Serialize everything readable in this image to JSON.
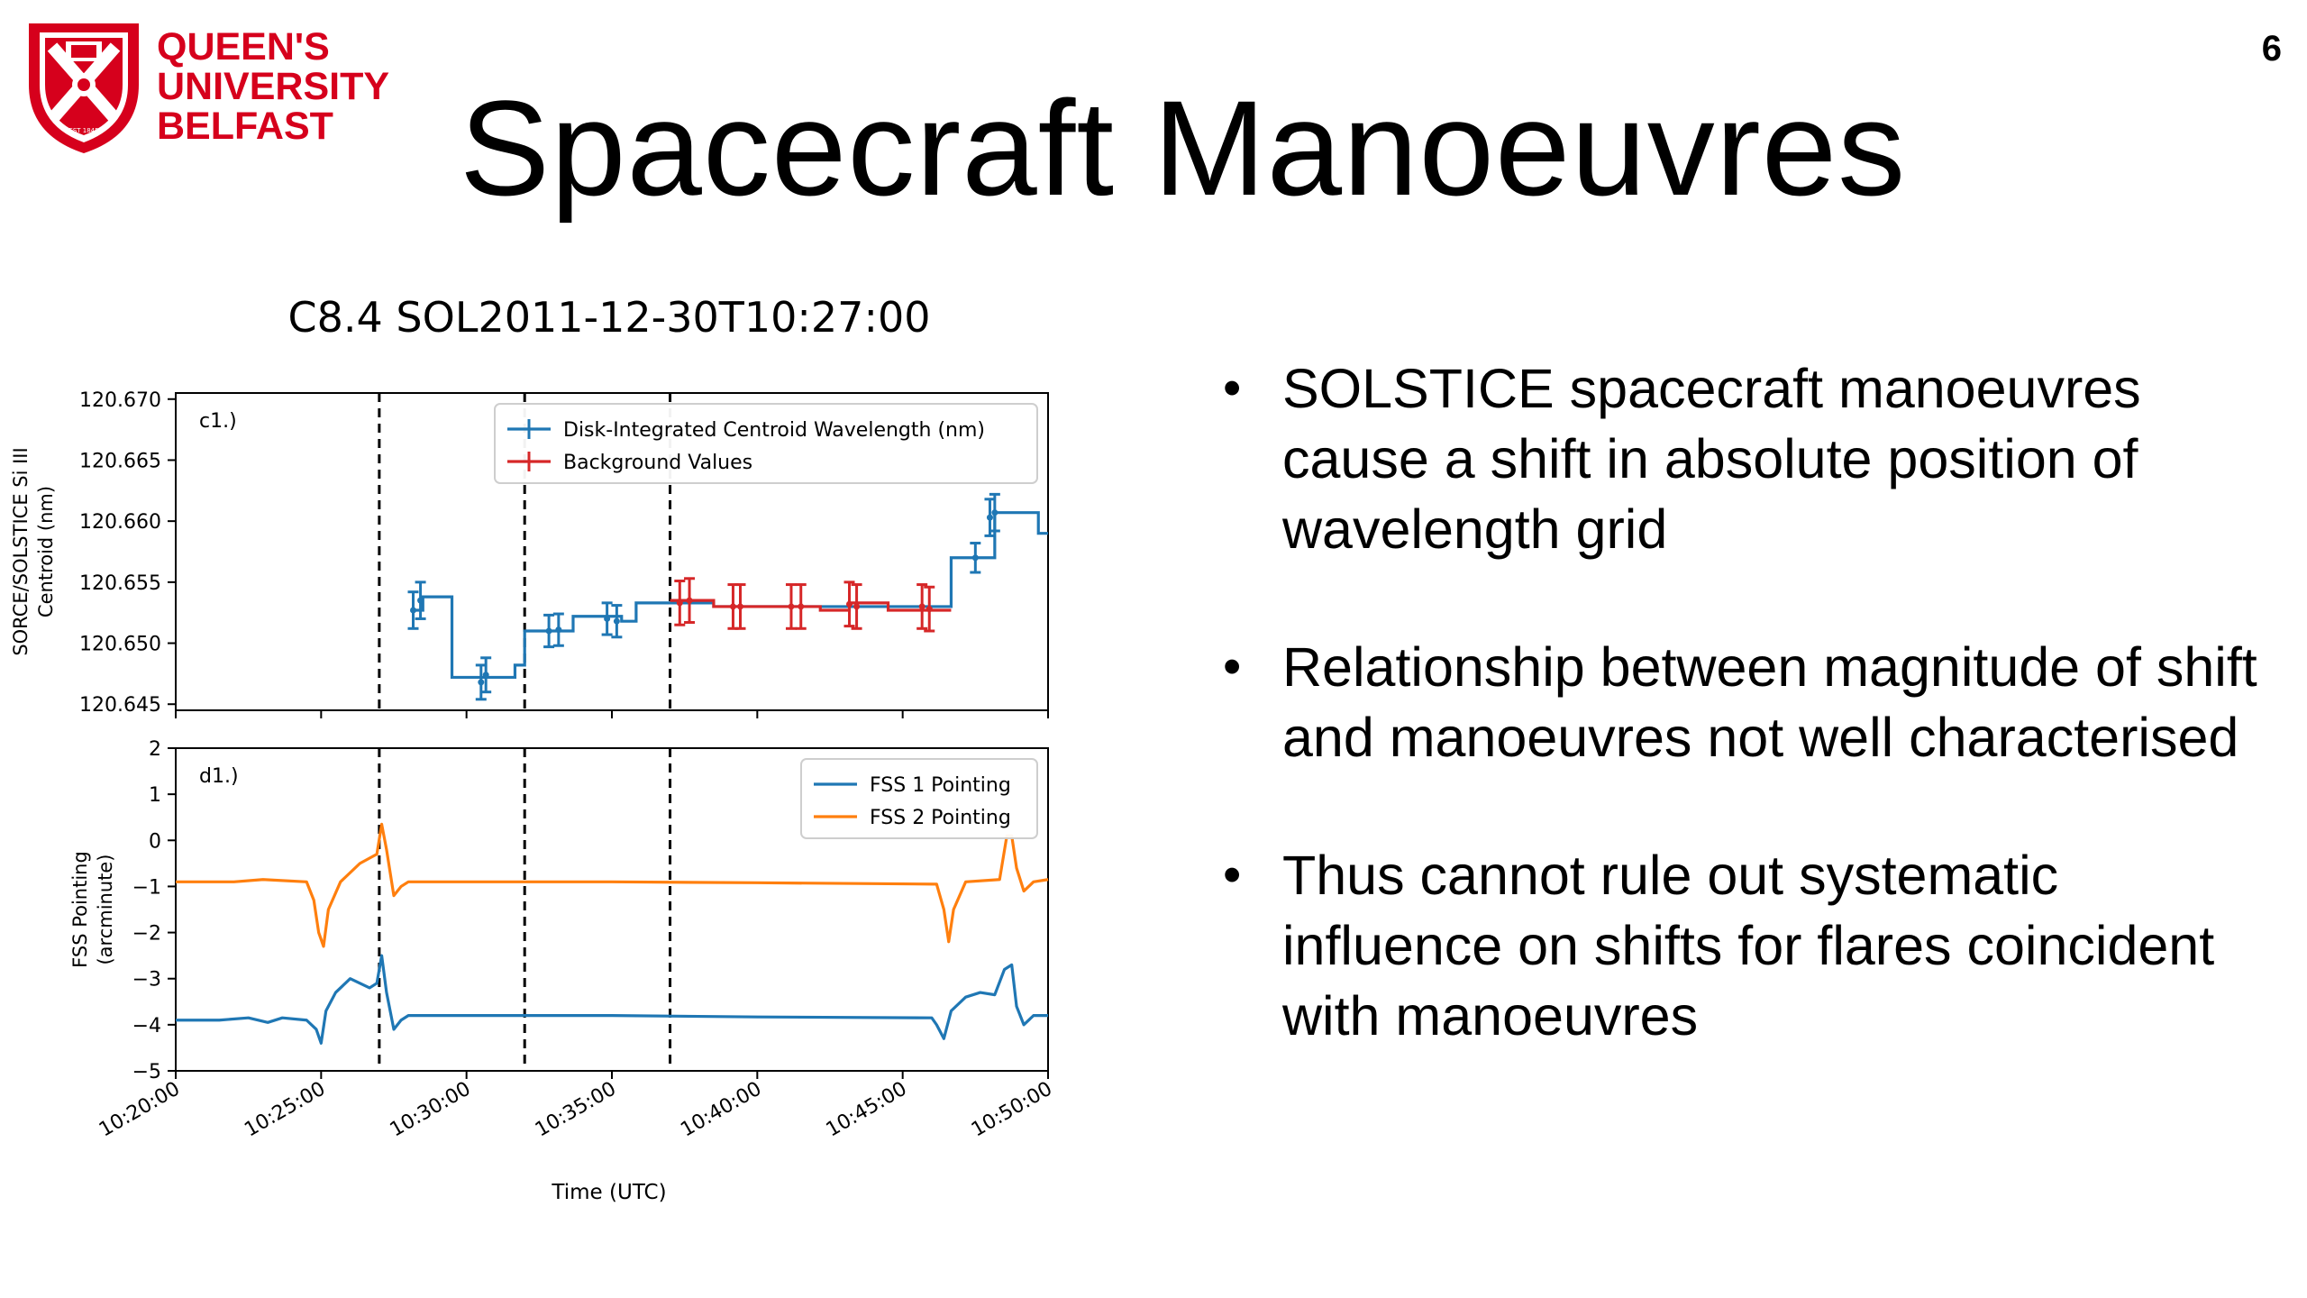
{
  "slide": {
    "page_number": "6",
    "title": "Spacecraft Manoeuvres"
  },
  "logo": {
    "line1": "QUEEN'S",
    "line2": "UNIVERSITY",
    "line3": "BELFAST",
    "crest_text": "EST 1845",
    "brand_color": "#d6001c"
  },
  "bullets": [
    "SOLSTICE spacecraft manoeuvres cause a shift in absolute position of wavelength grid",
    "Relationship between magnitude of shift and manoeuvres not well characterised",
    "Thus cannot rule out systematic influence on shifts for flares coincident with manoeuvres"
  ],
  "chart_data": [
    {
      "type": "line",
      "title": "C8.4 SOL2011-12-30T10:27:00",
      "panel_label": "c1.)",
      "xlabel": "",
      "ylabel_lines": [
        "SORCE/SOLSTICE Si III",
        "Centroid (nm)"
      ],
      "xlim": [
        "10:20:00",
        "10:50:00"
      ],
      "ylim": [
        120.6445,
        120.6705
      ],
      "yticks": [
        120.645,
        120.65,
        120.655,
        120.66,
        120.665,
        120.67
      ],
      "ytick_labels": [
        "120.645",
        "120.650",
        "120.655",
        "120.660",
        "120.665",
        "120.670"
      ],
      "vlines": [
        "10:27:00",
        "10:32:00",
        "10:37:00"
      ],
      "legend_position": "upper right",
      "series": [
        {
          "name": "Disk-Integrated Centroid Wavelength (nm)",
          "color": "#1f77b4",
          "steps": [
            {
              "t": "10:28:10",
              "y": 120.6527
            },
            {
              "t": "10:28:30",
              "y": 120.6538
            },
            {
              "t": "10:29:30",
              "y": 120.6472
            },
            {
              "t": "10:31:40",
              "y": 120.6482
            },
            {
              "t": "10:32:00",
              "y": 120.651
            },
            {
              "t": "10:33:40",
              "y": 120.6522
            },
            {
              "t": "10:35:20",
              "y": 120.6518
            },
            {
              "t": "10:35:50",
              "y": 120.6533
            },
            {
              "t": "10:38:30",
              "y": 120.653
            },
            {
              "t": "10:46:40",
              "y": 120.657
            },
            {
              "t": "10:48:10",
              "y": 120.6607
            },
            {
              "t": "10:49:40",
              "y": 120.659
            },
            {
              "t": "10:50:00",
              "y": 120.659
            }
          ],
          "error_points": [
            {
              "t": "10:28:10",
              "y": 120.6527,
              "err": 0.0015
            },
            {
              "t": "10:28:25",
              "y": 120.6535,
              "err": 0.0015
            },
            {
              "t": "10:30:30",
              "y": 120.6468,
              "err": 0.0014
            },
            {
              "t": "10:30:40",
              "y": 120.6474,
              "err": 0.0014
            },
            {
              "t": "10:32:50",
              "y": 120.651,
              "err": 0.0013
            },
            {
              "t": "10:33:10",
              "y": 120.6511,
              "err": 0.0013
            },
            {
              "t": "10:34:50",
              "y": 120.652,
              "err": 0.0013
            },
            {
              "t": "10:35:10",
              "y": 120.6518,
              "err": 0.0013
            },
            {
              "t": "10:47:30",
              "y": 120.657,
              "err": 0.0012
            },
            {
              "t": "10:48:00",
              "y": 120.6603,
              "err": 0.0015
            },
            {
              "t": "10:48:10",
              "y": 120.6607,
              "err": 0.0015
            }
          ]
        },
        {
          "name": "Background Values",
          "color": "#d62728",
          "steps": [
            {
              "t": "10:37:00",
              "y": 120.6535
            },
            {
              "t": "10:38:30",
              "y": 120.653
            },
            {
              "t": "10:42:10",
              "y": 120.6527
            },
            {
              "t": "10:43:10",
              "y": 120.6533
            },
            {
              "t": "10:44:30",
              "y": 120.6527
            },
            {
              "t": "10:46:40",
              "y": 120.6527
            }
          ],
          "error_points": [
            {
              "t": "10:37:20",
              "y": 120.6533,
              "err": 0.0018
            },
            {
              "t": "10:37:40",
              "y": 120.6535,
              "err": 0.0018
            },
            {
              "t": "10:39:10",
              "y": 120.653,
              "err": 0.0018
            },
            {
              "t": "10:39:25",
              "y": 120.653,
              "err": 0.0018
            },
            {
              "t": "10:41:10",
              "y": 120.653,
              "err": 0.0018
            },
            {
              "t": "10:41:30",
              "y": 120.653,
              "err": 0.0018
            },
            {
              "t": "10:43:10",
              "y": 120.6532,
              "err": 0.0018
            },
            {
              "t": "10:43:25",
              "y": 120.653,
              "err": 0.0018
            },
            {
              "t": "10:45:40",
              "y": 120.653,
              "err": 0.0018
            },
            {
              "t": "10:45:55",
              "y": 120.6528,
              "err": 0.0018
            }
          ]
        }
      ]
    },
    {
      "type": "line",
      "panel_label": "d1.)",
      "xlabel": "Time (UTC)",
      "ylabel_lines": [
        "FSS Pointing",
        "(arcminute)"
      ],
      "xlim": [
        "10:20:00",
        "10:50:00"
      ],
      "ylim": [
        -5,
        2
      ],
      "yticks": [
        -5,
        -4,
        -3,
        -2,
        -1,
        0,
        1,
        2
      ],
      "ytick_labels": [
        "−5",
        "−4",
        "−3",
        "−2",
        "−1",
        "0",
        "1",
        "2"
      ],
      "xticks": [
        "10:20:00",
        "10:25:00",
        "10:30:00",
        "10:35:00",
        "10:40:00",
        "10:45:00",
        "10:50:00"
      ],
      "xtick_labels": [
        "10:20:00",
        "10:25:00",
        "10:30:00",
        "10:35:00",
        "10:40:00",
        "10:45:00",
        "10:50:00"
      ],
      "vlines": [
        "10:27:00",
        "10:32:00",
        "10:37:00"
      ],
      "legend_position": "upper right",
      "series": [
        {
          "name": "FSS 1 Pointing",
          "color": "#1f77b4",
          "points": [
            {
              "t": "10:20:00",
              "y": -3.9
            },
            {
              "t": "10:21:30",
              "y": -3.9
            },
            {
              "t": "10:22:30",
              "y": -3.85
            },
            {
              "t": "10:23:10",
              "y": -3.95
            },
            {
              "t": "10:23:40",
              "y": -3.85
            },
            {
              "t": "10:24:30",
              "y": -3.9
            },
            {
              "t": "10:24:50",
              "y": -4.1
            },
            {
              "t": "10:25:00",
              "y": -4.4
            },
            {
              "t": "10:25:10",
              "y": -3.7
            },
            {
              "t": "10:25:30",
              "y": -3.3
            },
            {
              "t": "10:26:00",
              "y": -3.0
            },
            {
              "t": "10:26:40",
              "y": -3.2
            },
            {
              "t": "10:26:55",
              "y": -3.1
            },
            {
              "t": "10:27:05",
              "y": -2.5
            },
            {
              "t": "10:27:15",
              "y": -3.3
            },
            {
              "t": "10:27:30",
              "y": -4.1
            },
            {
              "t": "10:27:45",
              "y": -3.9
            },
            {
              "t": "10:28:00",
              "y": -3.8
            },
            {
              "t": "10:35:00",
              "y": -3.8
            },
            {
              "t": "10:40:00",
              "y": -3.83
            },
            {
              "t": "10:46:00",
              "y": -3.85
            },
            {
              "t": "10:46:10",
              "y": -4.0
            },
            {
              "t": "10:46:25",
              "y": -4.3
            },
            {
              "t": "10:46:40",
              "y": -3.7
            },
            {
              "t": "10:47:10",
              "y": -3.4
            },
            {
              "t": "10:47:40",
              "y": -3.3
            },
            {
              "t": "10:48:10",
              "y": -3.35
            },
            {
              "t": "10:48:30",
              "y": -2.8
            },
            {
              "t": "10:48:45",
              "y": -2.7
            },
            {
              "t": "10:48:55",
              "y": -3.6
            },
            {
              "t": "10:49:10",
              "y": -4.0
            },
            {
              "t": "10:49:30",
              "y": -3.8
            },
            {
              "t": "10:50:00",
              "y": -3.8
            }
          ]
        },
        {
          "name": "FSS 2 Pointing",
          "color": "#ff7f0e",
          "points": [
            {
              "t": "10:20:00",
              "y": -0.9
            },
            {
              "t": "10:22:00",
              "y": -0.9
            },
            {
              "t": "10:23:00",
              "y": -0.85
            },
            {
              "t": "10:24:30",
              "y": -0.9
            },
            {
              "t": "10:24:45",
              "y": -1.3
            },
            {
              "t": "10:24:55",
              "y": -2.0
            },
            {
              "t": "10:25:05",
              "y": -2.3
            },
            {
              "t": "10:25:15",
              "y": -1.5
            },
            {
              "t": "10:25:40",
              "y": -0.9
            },
            {
              "t": "10:26:20",
              "y": -0.5
            },
            {
              "t": "10:26:55",
              "y": -0.3
            },
            {
              "t": "10:27:05",
              "y": 0.35
            },
            {
              "t": "10:27:15",
              "y": -0.2
            },
            {
              "t": "10:27:30",
              "y": -1.2
            },
            {
              "t": "10:27:45",
              "y": -1.0
            },
            {
              "t": "10:28:00",
              "y": -0.9
            },
            {
              "t": "10:35:00",
              "y": -0.9
            },
            {
              "t": "10:40:00",
              "y": -0.92
            },
            {
              "t": "10:46:10",
              "y": -0.95
            },
            {
              "t": "10:46:25",
              "y": -1.5
            },
            {
              "t": "10:46:35",
              "y": -2.2
            },
            {
              "t": "10:46:45",
              "y": -1.5
            },
            {
              "t": "10:47:10",
              "y": -0.9
            },
            {
              "t": "10:48:20",
              "y": -0.85
            },
            {
              "t": "10:48:35",
              "y": 0.1
            },
            {
              "t": "10:48:45",
              "y": 0.1
            },
            {
              "t": "10:48:55",
              "y": -0.6
            },
            {
              "t": "10:49:10",
              "y": -1.1
            },
            {
              "t": "10:49:30",
              "y": -0.9
            },
            {
              "t": "10:50:00",
              "y": -0.85
            }
          ]
        }
      ]
    }
  ]
}
